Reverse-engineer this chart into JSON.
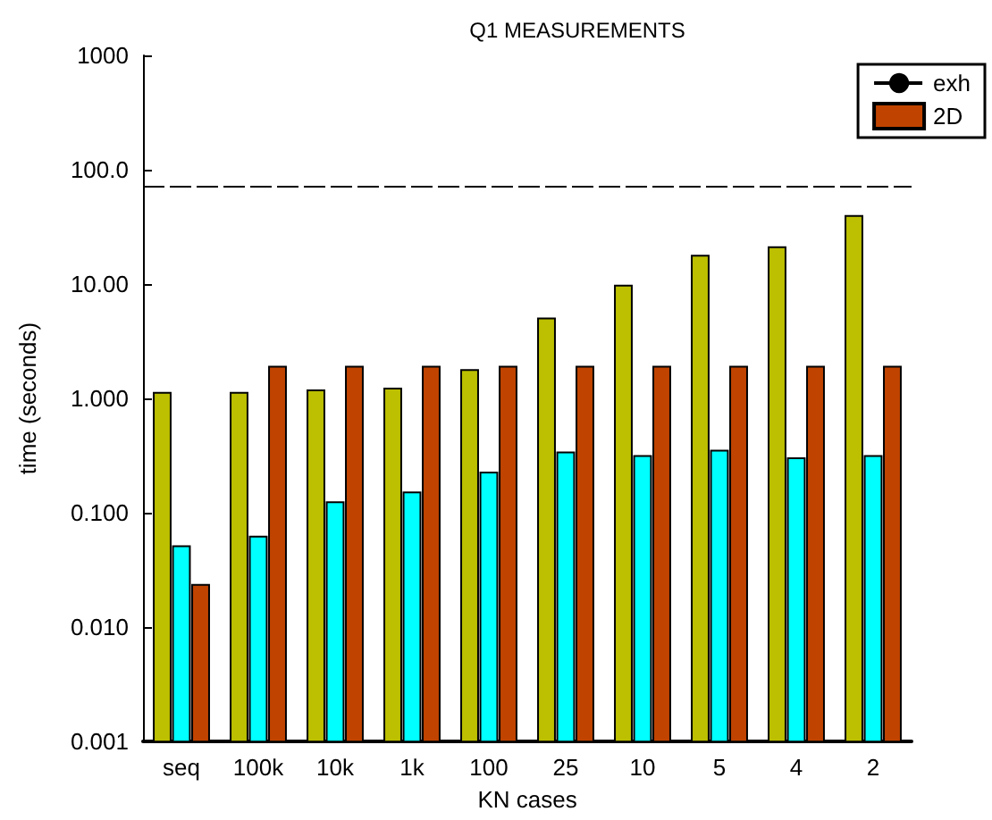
{
  "chart_data": {
    "type": "bar",
    "title": "Q1 MEASUREMENTS",
    "xlabel": "KN cases",
    "ylabel": "time (seconds)",
    "categories": [
      "seq",
      "100k",
      "10k",
      "1k",
      "100",
      "25",
      "10",
      "5",
      "4",
      "2"
    ],
    "series": [
      {
        "color": "#bcc000",
        "values": [
          1.12,
          1.12,
          1.18,
          1.22,
          1.77,
          5.0,
          9.7,
          17.7,
          21,
          39.5
        ]
      },
      {
        "color": "#00ffff",
        "values": [
          0.051,
          0.062,
          0.124,
          0.151,
          0.225,
          0.337,
          0.314,
          0.35,
          0.3,
          0.314
        ]
      },
      {
        "name": "2D",
        "color": "#c04400",
        "values": [
          0.0235,
          1.9,
          1.9,
          1.9,
          1.9,
          1.9,
          1.9,
          1.9,
          1.9,
          1.9
        ]
      }
    ],
    "ref_lines": [
      {
        "axis": "y",
        "value": 73,
        "label": "exh",
        "color": "#000000",
        "line_style": "dashed"
      }
    ],
    "log": "y",
    "ylim": [
      0.001,
      1000
    ],
    "yticks": [
      {
        "value": 0.001,
        "label": "0.001"
      },
      {
        "value": 0.01,
        "label": "0.010"
      },
      {
        "value": 0.1,
        "label": "0.100"
      },
      {
        "value": 1,
        "label": "1.000"
      },
      {
        "value": 10,
        "label": "10.00"
      },
      {
        "value": 100,
        "label": "100.0"
      },
      1000
    ],
    "grid": false,
    "legend": "top right"
  }
}
